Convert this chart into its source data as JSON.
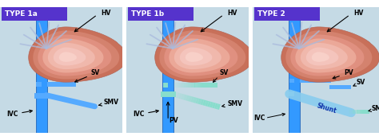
{
  "panel_titles": [
    "TYPE 1a",
    "TYPE 1b",
    "TYPE 2"
  ],
  "bg_color": "#c5dae5",
  "title_color": "#5533cc",
  "ivc_color": "#3399ff",
  "ivc_edge": "#2266bb",
  "vessel_blue": "#55aaff",
  "vessel_teal": "#88ddcc",
  "shunt_color": "#88ccee",
  "liver_main": "#e0907a",
  "liver_light": "#f0b8a0",
  "liver_pink": "#f4c8c0",
  "liver_rays": "#aabbdd",
  "label_fs": 5.5,
  "title_fs": 6.5
}
